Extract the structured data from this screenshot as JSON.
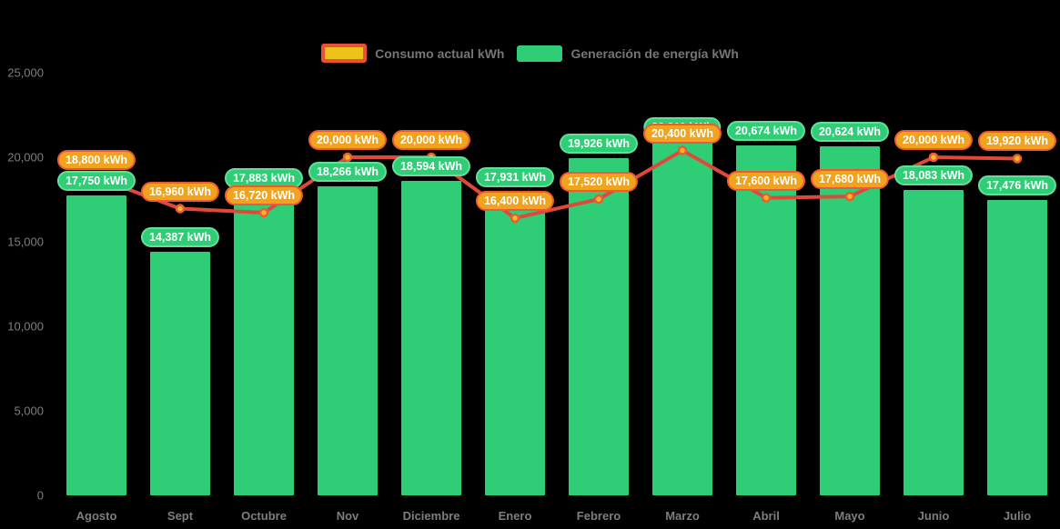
{
  "legend": {
    "items": [
      {
        "label": "Consumo actual kWh",
        "series": "line",
        "fill": "#EEC319",
        "border": "#E85037"
      },
      {
        "label": "Generación de energía kWh",
        "series": "bar",
        "fill": "#2FCE76"
      }
    ]
  },
  "labels": {
    "value_suffix": " kWh"
  },
  "colors": {
    "background": "#000000",
    "bar_fill": "#2FCE76",
    "bar_pill_border": "#63DF9C",
    "line_stroke": "#E0493A",
    "marker_fill": "#F8B91E",
    "marker_ring": "#EA5C37",
    "line_pill_fill": "#F0A31C",
    "line_pill_border": "#EE5A36",
    "axis_text": "#7E7E7E",
    "legend_text": "#757575",
    "pill_text": "#FFFFFF"
  },
  "chart_data": {
    "type": "bar",
    "subtype": "bar-with-line-overlay",
    "title": "",
    "xlabel": "",
    "ylabel": "",
    "categories": [
      "Agosto",
      "Sept",
      "Octubre",
      "Nov",
      "Diciembre",
      "Enero",
      "Febrero",
      "Marzo",
      "Abril",
      "Mayo",
      "Junio",
      "Julio"
    ],
    "series": [
      {
        "name": "Consumo actual kWh",
        "type": "line",
        "values": [
          18800,
          16960,
          16720,
          20000,
          20000,
          16400,
          17520,
          20400,
          17600,
          17680,
          20000,
          19920
        ],
        "point_labels": [
          "18,800 kWh",
          "16,960 kWh",
          "16,720 kWh",
          "20,000 kWh",
          "20,000 kWh",
          "16,400 kWh",
          "17,520 kWh",
          "20,400 kWh",
          "17,600 kWh",
          "17,680 kWh",
          "20,000 kWh",
          "19,920 kWh"
        ]
      },
      {
        "name": "Generación de energía kWh",
        "type": "bar",
        "values": [
          17750,
          14387,
          17883,
          18266,
          18594,
          17931,
          19926,
          20911,
          20674,
          20624,
          18083,
          17476
        ],
        "point_labels": [
          "17,750 kWh",
          "14,387 kWh",
          "17,883 kWh",
          "18,266 kWh",
          "18,594 kWh",
          "17,931 kWh",
          "19,926 kWh",
          "20,911 kWh",
          "20,674 kWh",
          "20,624 kWh",
          "18,083 kWh",
          "17,476 kWh"
        ]
      }
    ],
    "y_ticks": [
      0,
      5000,
      10000,
      15000,
      20000,
      25000
    ],
    "y_tick_labels": [
      "0",
      "5,000",
      "10,000",
      "15,000",
      "20,000",
      "25,000"
    ],
    "ylim": [
      0,
      25000
    ],
    "grid": false,
    "legend_position": "top"
  }
}
